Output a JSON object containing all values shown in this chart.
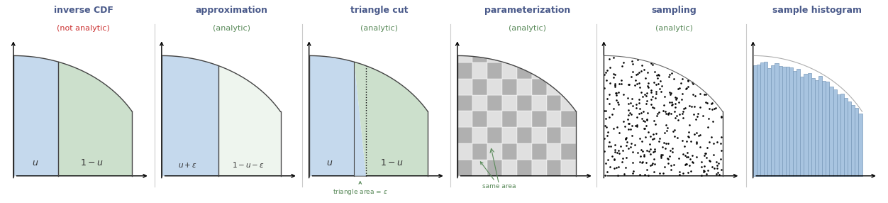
{
  "panel_titles": [
    "inverse CDF",
    "approximation",
    "triangle cut",
    "parameterization",
    "sampling",
    "sample histogram"
  ],
  "panel_subtitles": [
    "(not analytic)",
    "(analytic)",
    "(analytic)",
    "(analytic)",
    "(analytic)",
    ""
  ],
  "title_color": "#4a5a8a",
  "subtitle_color_red": "#cc3333",
  "subtitle_color_green": "#5a8a5a",
  "color_blue_fill": "#c5d9ed",
  "color_green_fill": "#cce0cc",
  "color_white_fill": "#eef5ee",
  "color_checker_light": "#e0e0e0",
  "color_checker_dark": "#b0b0b0",
  "color_bar": "#a8c4e0",
  "color_bar_edge": "#7a9aba",
  "text_color_dark": "#333333",
  "annotation_color": "#5a8a5a",
  "u_val": 0.38,
  "eps": 0.1,
  "n_dots": 400,
  "n_bins": 30
}
